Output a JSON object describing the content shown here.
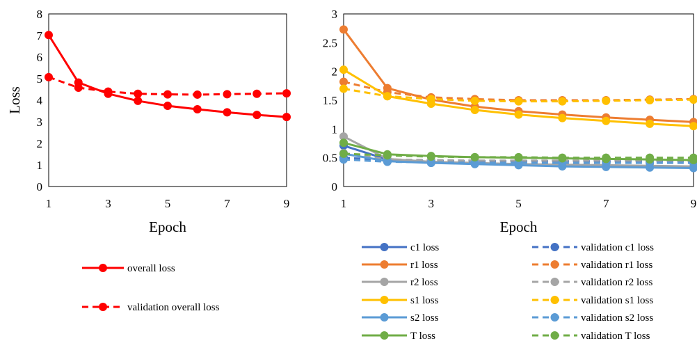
{
  "chart_data": [
    {
      "type": "line",
      "xlabel": "Epoch",
      "ylabel": "Loss",
      "xlim": [
        1,
        9
      ],
      "ylim": [
        0,
        8
      ],
      "x_ticks": [
        "1",
        "3",
        "5",
        "7",
        "9"
      ],
      "y_ticks": [
        "0",
        "1",
        "2",
        "3",
        "4",
        "5",
        "6",
        "7",
        "8"
      ],
      "grid": false,
      "legend_position": "below",
      "x": [
        1,
        2,
        3,
        4,
        5,
        6,
        7,
        8,
        9
      ],
      "series": [
        {
          "name": "overall loss",
          "color": "#ff0000",
          "dashed": false,
          "values": [
            7.02,
            4.82,
            4.3,
            3.97,
            3.74,
            3.58,
            3.44,
            3.32,
            3.22
          ]
        },
        {
          "name": "validation overall loss",
          "color": "#ff0000",
          "dashed": true,
          "values": [
            5.07,
            4.58,
            4.4,
            4.3,
            4.27,
            4.26,
            4.28,
            4.3,
            4.32
          ]
        }
      ]
    },
    {
      "type": "line",
      "xlabel": "Epoch",
      "ylabel": "",
      "xlim": [
        1,
        9
      ],
      "ylim": [
        0,
        3
      ],
      "x_ticks": [
        "1",
        "3",
        "5",
        "7",
        "9"
      ],
      "y_ticks": [
        "0",
        "0.5",
        "1",
        "1.5",
        "2",
        "2.5",
        "3"
      ],
      "grid": false,
      "legend_position": "below",
      "x": [
        1,
        2,
        3,
        4,
        5,
        6,
        7,
        8,
        9
      ],
      "series": [
        {
          "name": "c1 loss",
          "color": "#4472c4",
          "dashed": false,
          "values": [
            0.71,
            0.47,
            0.43,
            0.4,
            0.38,
            0.37,
            0.36,
            0.35,
            0.34
          ]
        },
        {
          "name": "validation c1 loss",
          "color": "#4472c4",
          "dashed": true,
          "values": [
            0.5,
            0.46,
            0.45,
            0.44,
            0.44,
            0.44,
            0.44,
            0.44,
            0.44
          ]
        },
        {
          "name": "r1 loss",
          "color": "#ed7d31",
          "dashed": false,
          "values": [
            2.73,
            1.71,
            1.51,
            1.39,
            1.31,
            1.25,
            1.2,
            1.16,
            1.12
          ]
        },
        {
          "name": "validation r1 loss",
          "color": "#ed7d31",
          "dashed": true,
          "values": [
            1.82,
            1.64,
            1.55,
            1.52,
            1.5,
            1.5,
            1.5,
            1.51,
            1.52
          ]
        },
        {
          "name": "r2 loss",
          "color": "#a5a5a5",
          "dashed": false,
          "values": [
            0.87,
            0.48,
            0.43,
            0.41,
            0.39,
            0.38,
            0.37,
            0.36,
            0.35
          ]
        },
        {
          "name": "validation r2 loss",
          "color": "#a5a5a5",
          "dashed": true,
          "values": [
            0.58,
            0.47,
            0.46,
            0.45,
            0.45,
            0.45,
            0.45,
            0.45,
            0.45
          ]
        },
        {
          "name": "s1 loss",
          "color": "#ffc000",
          "dashed": false,
          "values": [
            2.03,
            1.57,
            1.44,
            1.33,
            1.25,
            1.19,
            1.14,
            1.09,
            1.05
          ]
        },
        {
          "name": "validation s1 loss",
          "color": "#ffc000",
          "dashed": true,
          "values": [
            1.7,
            1.57,
            1.52,
            1.49,
            1.48,
            1.48,
            1.49,
            1.5,
            1.51
          ]
        },
        {
          "name": "s2 loss",
          "color": "#5b9bd5",
          "dashed": false,
          "values": [
            0.57,
            0.44,
            0.41,
            0.39,
            0.37,
            0.35,
            0.34,
            0.33,
            0.32
          ]
        },
        {
          "name": "validation s2 loss",
          "color": "#5b9bd5",
          "dashed": true,
          "values": [
            0.47,
            0.43,
            0.42,
            0.41,
            0.41,
            0.41,
            0.41,
            0.41,
            0.41
          ]
        },
        {
          "name": "T loss",
          "color": "#70ad47",
          "dashed": false,
          "values": [
            0.76,
            0.56,
            0.53,
            0.51,
            0.5,
            0.49,
            0.48,
            0.47,
            0.46
          ]
        },
        {
          "name": "validation T loss",
          "color": "#70ad47",
          "dashed": true,
          "values": [
            0.57,
            0.54,
            0.52,
            0.51,
            0.51,
            0.5,
            0.5,
            0.5,
            0.5
          ]
        }
      ]
    }
  ]
}
